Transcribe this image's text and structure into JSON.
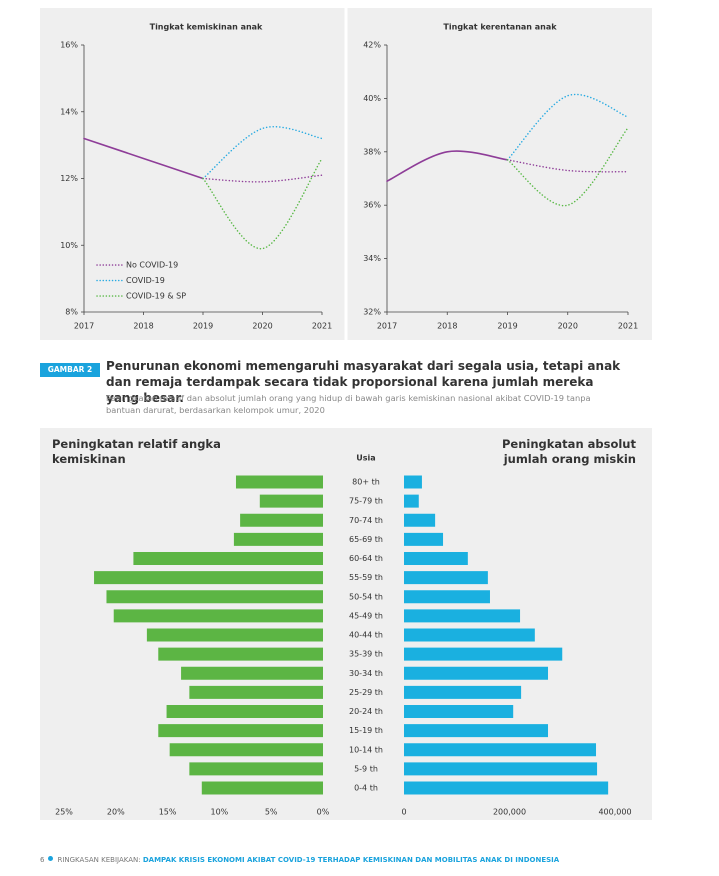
{
  "chart_data": [
    {
      "type": "line",
      "title": "Tingkat kemiskinan anak",
      "x": [
        2017,
        2018,
        2019,
        2020,
        2021
      ],
      "xlim": [
        2017,
        2021
      ],
      "xticks": [
        2017,
        2018,
        2019,
        2020,
        2021
      ],
      "ylim": [
        8,
        16
      ],
      "yticks": [
        {
          "value": 8,
          "label": "8%"
        },
        {
          "value": 10,
          "label": "10%"
        },
        {
          "value": 12,
          "label": "12%"
        },
        {
          "value": 14,
          "label": "14%"
        },
        {
          "value": 16,
          "label": "16%"
        }
      ],
      "legend": "lower left",
      "series": [
        {
          "name": "No COVID-19",
          "color": "#8e3d98",
          "values": [
            13.2,
            12.6,
            12.0,
            11.9,
            12.1
          ]
        },
        {
          "name": "COVID-19",
          "color": "#29abe2",
          "values": [
            null,
            null,
            12.0,
            13.5,
            13.2
          ]
        },
        {
          "name": "COVID-19 & SP",
          "color": "#5ab947",
          "values": [
            null,
            null,
            12.0,
            9.9,
            12.6
          ]
        }
      ]
    },
    {
      "type": "line",
      "title": "Tingkat kerentanan anak",
      "x": [
        2017,
        2018,
        2019,
        2020,
        2021
      ],
      "xlim": [
        2017,
        2021
      ],
      "xticks": [
        2017,
        2018,
        2019,
        2020,
        2021
      ],
      "ylim": [
        32,
        42
      ],
      "yticks": [
        {
          "value": 32,
          "label": "32%"
        },
        {
          "value": 34,
          "label": "34%"
        },
        {
          "value": 36,
          "label": "36%"
        },
        {
          "value": 38,
          "label": "38%"
        },
        {
          "value": 40,
          "label": "40%"
        },
        {
          "value": 42,
          "label": "42%"
        }
      ],
      "series": [
        {
          "color": "#8e3d98",
          "values": [
            36.9,
            38.0,
            37.7,
            37.3,
            37.25
          ]
        },
        {
          "color": "#29abe2",
          "values": [
            null,
            null,
            37.7,
            40.1,
            39.3
          ]
        },
        {
          "color": "#5ab947",
          "values": [
            null,
            null,
            37.7,
            36.0,
            38.9
          ]
        }
      ]
    },
    {
      "type": "pyramid",
      "center_label": "Usia",
      "categories": [
        "80+ th",
        "75-79 th",
        "70-74 th",
        "65-69 th",
        "60-64 th",
        "55-59 th",
        "50-54 th",
        "45-49 th",
        "40-44 th",
        "35-39 th",
        "30-34 th",
        "25-29 th",
        "20-24 th",
        "15-19 th",
        "10-14 th",
        "5-9 th",
        "0-4 th"
      ],
      "series": [
        {
          "name": "Peningkatan relatif angka kemiskinan",
          "color": "#5cb544",
          "values": [
            8.4,
            6.1,
            8.0,
            8.6,
            18.3,
            22.1,
            20.9,
            20.2,
            17.0,
            15.9,
            13.7,
            12.9,
            15.1,
            15.9,
            14.8,
            12.9,
            11.7
          ],
          "xlim": [
            25,
            0
          ],
          "xticks": [
            {
              "value": 25,
              "label": "25%"
            },
            {
              "value": 20,
              "label": "20%"
            },
            {
              "value": 15,
              "label": "15%"
            },
            {
              "value": 10,
              "label": "10%"
            },
            {
              "value": 5,
              "label": "5%"
            },
            {
              "value": 0,
              "label": "0%"
            }
          ]
        },
        {
          "name": "Peningkatan absolut jumlah orang miskin",
          "color": "#1ab0e0",
          "values": [
            34000,
            28000,
            59000,
            74000,
            121000,
            159000,
            163000,
            220000,
            248000,
            300000,
            273000,
            222000,
            207000,
            273000,
            364000,
            366000,
            387000
          ],
          "xlim": [
            0,
            400000
          ],
          "xticks": [
            0,
            {
              "value": 200000,
              "label": "200,000"
            },
            {
              "value": 400000,
              "label": "400,000"
            }
          ]
        }
      ]
    }
  ],
  "figure": {
    "label": "GAMBAR 2",
    "title": "Penurunan ekonomi memengaruhi masyarakat dari segala usia, tetapi anak dan remaja terdampak secara tidak proporsional karena jumlah mereka yang besar.",
    "subtitle": "Peningkatan relatif dan absolut jumlah orang yang hidup di bawah garis kemiskinan nasional akibat COVID-19 tanpa bantuan darurat, berdasarkan kelompok umur, 2020"
  },
  "footer": {
    "page": "6",
    "section": "RINGKASAN KEBIJAKAN:",
    "title": "DAMPAK KRISIS EKONOMI AKIBAT COVID-19 TERHADAP KEMISKINAN DAN MOBILITAS ANAK DI INDONESIA"
  }
}
